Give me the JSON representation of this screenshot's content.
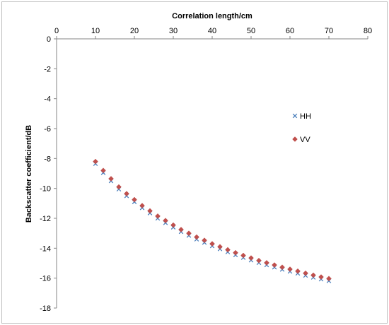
{
  "chart_data": {
    "type": "scatter",
    "xlabel": "Correlation length/cm",
    "ylabel": "Backscatter coefficient/dB",
    "xlim": [
      0,
      80
    ],
    "ylim": [
      -18,
      0
    ],
    "x_ticks": [
      0,
      10,
      20,
      30,
      40,
      50,
      60,
      70,
      80
    ],
    "y_ticks": [
      0,
      -2,
      -4,
      -6,
      -8,
      -10,
      -12,
      -14,
      -16,
      -18
    ],
    "x_axis_position": "top",
    "grid": false,
    "legend_position": "right",
    "series": [
      {
        "name": "HH",
        "marker": "x",
        "color": "#4a7ebb",
        "x": [
          10,
          12,
          14,
          16,
          18,
          20,
          22,
          24,
          26,
          28,
          30,
          32,
          34,
          36,
          38,
          40,
          42,
          44,
          46,
          48,
          50,
          52,
          54,
          56,
          58,
          60,
          62,
          64,
          66,
          68,
          70
        ],
        "y": [
          -8.35,
          -8.95,
          -9.5,
          -10.05,
          -10.5,
          -10.9,
          -11.3,
          -11.65,
          -12.0,
          -12.3,
          -12.6,
          -12.9,
          -13.15,
          -13.4,
          -13.62,
          -13.85,
          -14.05,
          -14.25,
          -14.45,
          -14.63,
          -14.8,
          -14.97,
          -15.12,
          -15.27,
          -15.42,
          -15.55,
          -15.68,
          -15.82,
          -15.95,
          -16.07,
          -16.18
        ]
      },
      {
        "name": "VV",
        "marker": "diamond",
        "color": "#c0504d",
        "x": [
          10,
          12,
          14,
          16,
          18,
          20,
          22,
          24,
          26,
          28,
          30,
          32,
          34,
          36,
          38,
          40,
          42,
          44,
          46,
          48,
          50,
          52,
          54,
          56,
          58,
          60,
          62,
          64,
          66,
          68,
          70
        ],
        "y": [
          -8.2,
          -8.8,
          -9.35,
          -9.9,
          -10.35,
          -10.75,
          -11.15,
          -11.5,
          -11.85,
          -12.15,
          -12.45,
          -12.75,
          -13.0,
          -13.25,
          -13.47,
          -13.7,
          -13.9,
          -14.1,
          -14.3,
          -14.48,
          -14.65,
          -14.82,
          -14.97,
          -15.12,
          -15.27,
          -15.4,
          -15.53,
          -15.67,
          -15.8,
          -15.92,
          -16.03
        ]
      }
    ]
  }
}
